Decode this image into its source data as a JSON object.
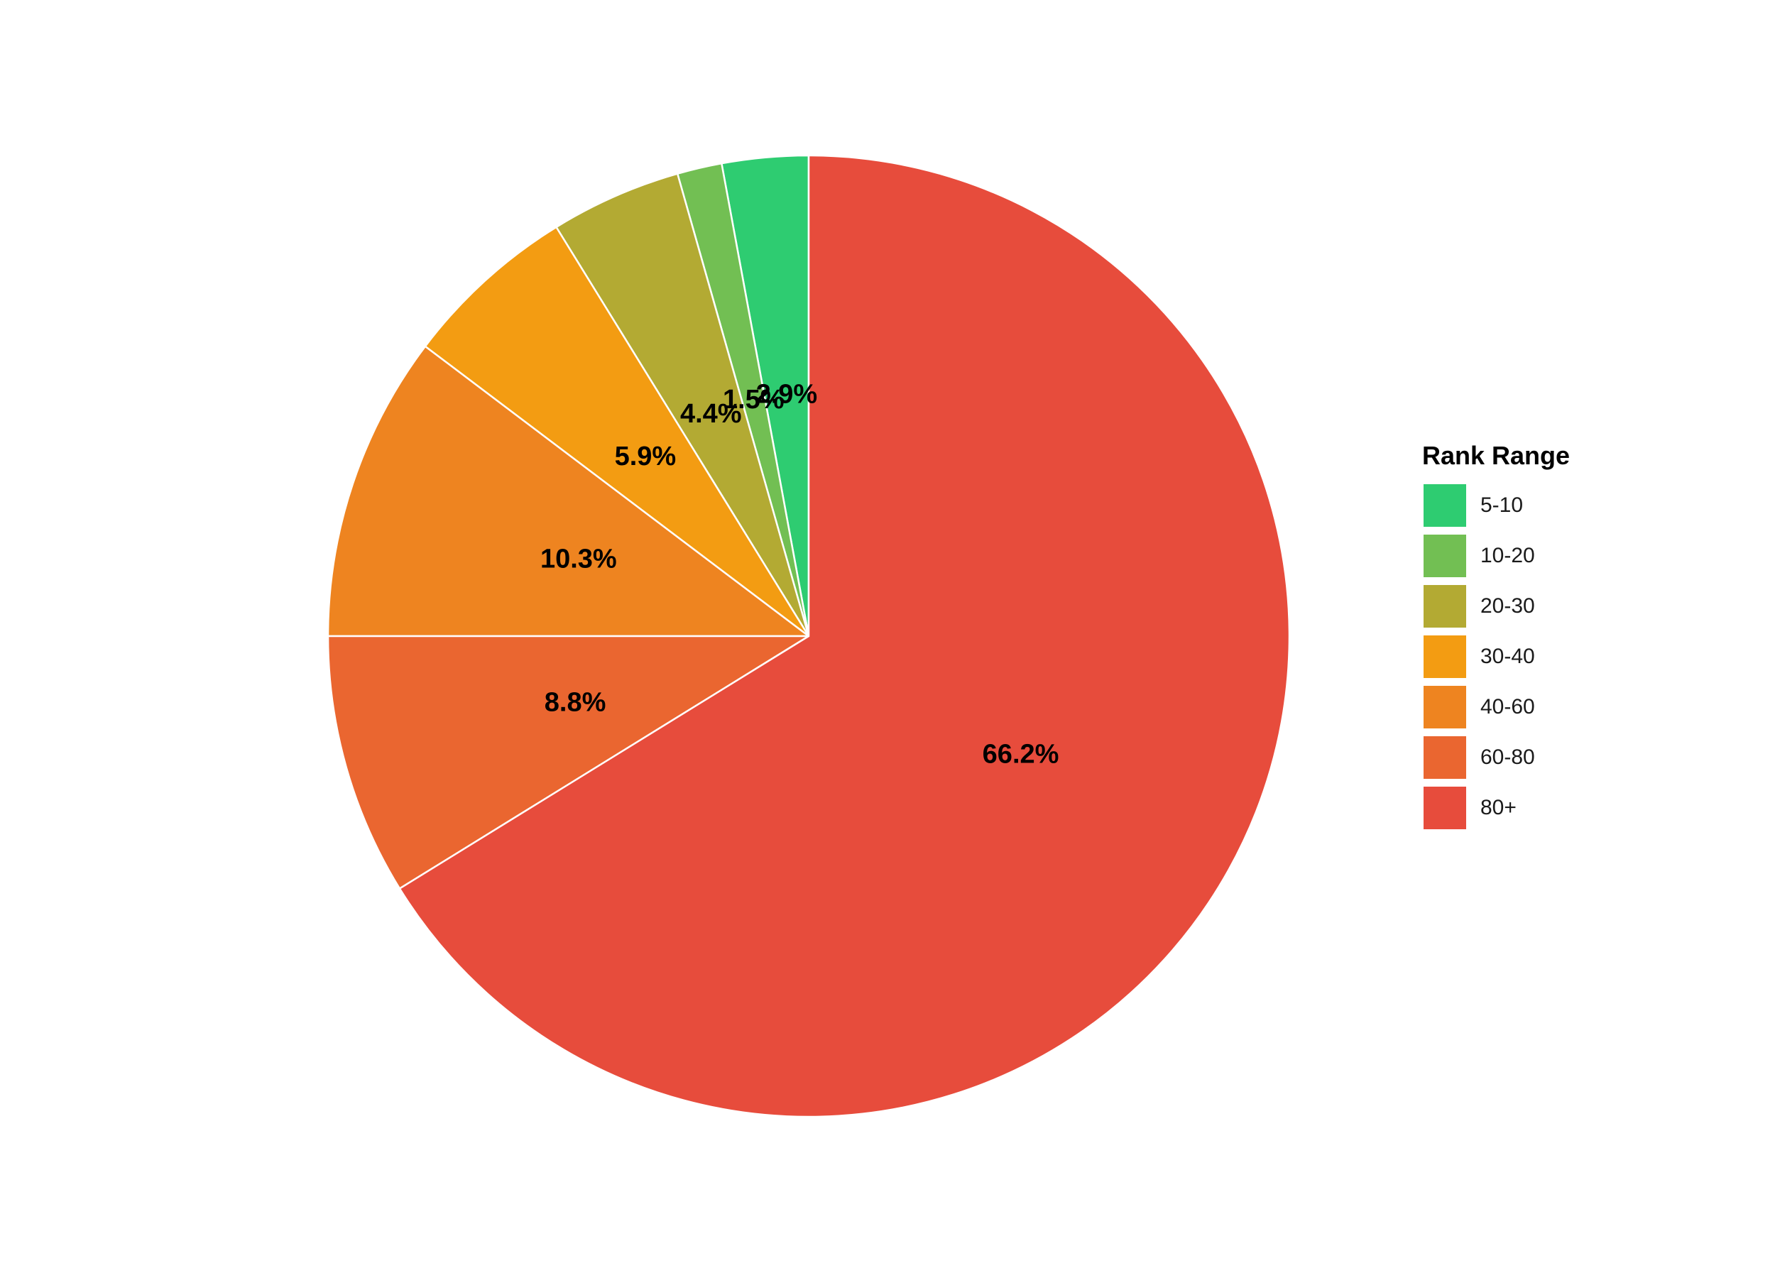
{
  "chart_data": {
    "type": "pie",
    "legend_title": "Rank Range",
    "legend_position": "right",
    "categories": [
      "5-10",
      "10-20",
      "20-30",
      "30-40",
      "40-60",
      "60-80",
      "80+"
    ],
    "values": [
      2.9,
      1.5,
      4.4,
      5.9,
      10.3,
      8.8,
      66.2
    ],
    "labels": [
      "2.9%",
      "1.5%",
      "4.4%",
      "5.9%",
      "10.3%",
      "8.8%",
      "66.2%"
    ],
    "colors": [
      "#2ecc71",
      "#72bf53",
      "#b3aa33",
      "#f39c12",
      "#ee8420",
      "#ea6630",
      "#e74c3c"
    ],
    "start_angle": "12 o'clock",
    "direction": "counterclockwise"
  }
}
